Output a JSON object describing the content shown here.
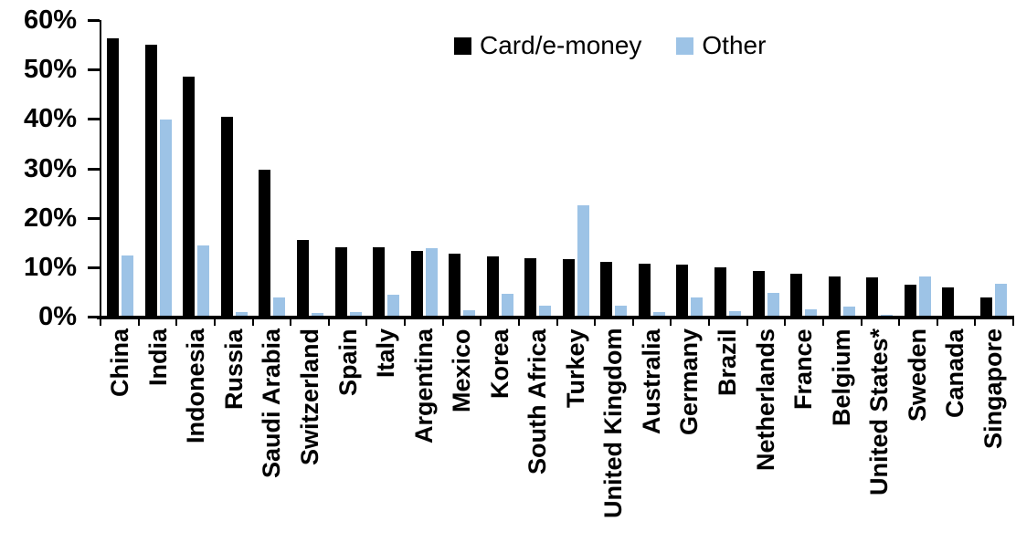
{
  "chart_data": {
    "type": "bar",
    "title": "",
    "xlabel": "",
    "ylabel": "",
    "unit": "%",
    "ylim": [
      0,
      60
    ],
    "ytick_step": 10,
    "ytick_labels": [
      "60%",
      "50%",
      "40%",
      "30%",
      "20%",
      "10%",
      "0%"
    ],
    "grid": false,
    "legend_position": "top-center",
    "categories": [
      "China",
      "India",
      "Indonesia",
      "Russia",
      "Saudi Arabia",
      "Switzerland",
      "Spain",
      "Italy",
      "Argentina",
      "Mexico",
      "Korea",
      "South Africa",
      "Turkey",
      "United Kingdom",
      "Australia",
      "Germany",
      "Brazil",
      "Netherlands",
      "France",
      "Belgium",
      "United States*",
      "Sweden",
      "Canada",
      "Singapore"
    ],
    "series": [
      {
        "name": "Card/e-money",
        "color": "#000000",
        "values": [
          56.4,
          55.1,
          48.5,
          40.5,
          29.8,
          15.6,
          14.1,
          14.0,
          13.3,
          12.8,
          12.2,
          11.8,
          11.6,
          11.0,
          10.7,
          10.5,
          10.0,
          9.2,
          8.7,
          8.2,
          7.9,
          6.5,
          6.0,
          3.9
        ]
      },
      {
        "name": "Other",
        "color": "#9DC3E6",
        "values": [
          12.3,
          39.8,
          14.5,
          1.0,
          3.9,
          0.8,
          1.0,
          4.5,
          13.8,
          1.3,
          4.6,
          2.3,
          22.6,
          2.2,
          1.0,
          3.9,
          1.2,
          4.8,
          1.5,
          2.0,
          0.3,
          8.1,
          0.0,
          6.6
        ]
      }
    ]
  }
}
